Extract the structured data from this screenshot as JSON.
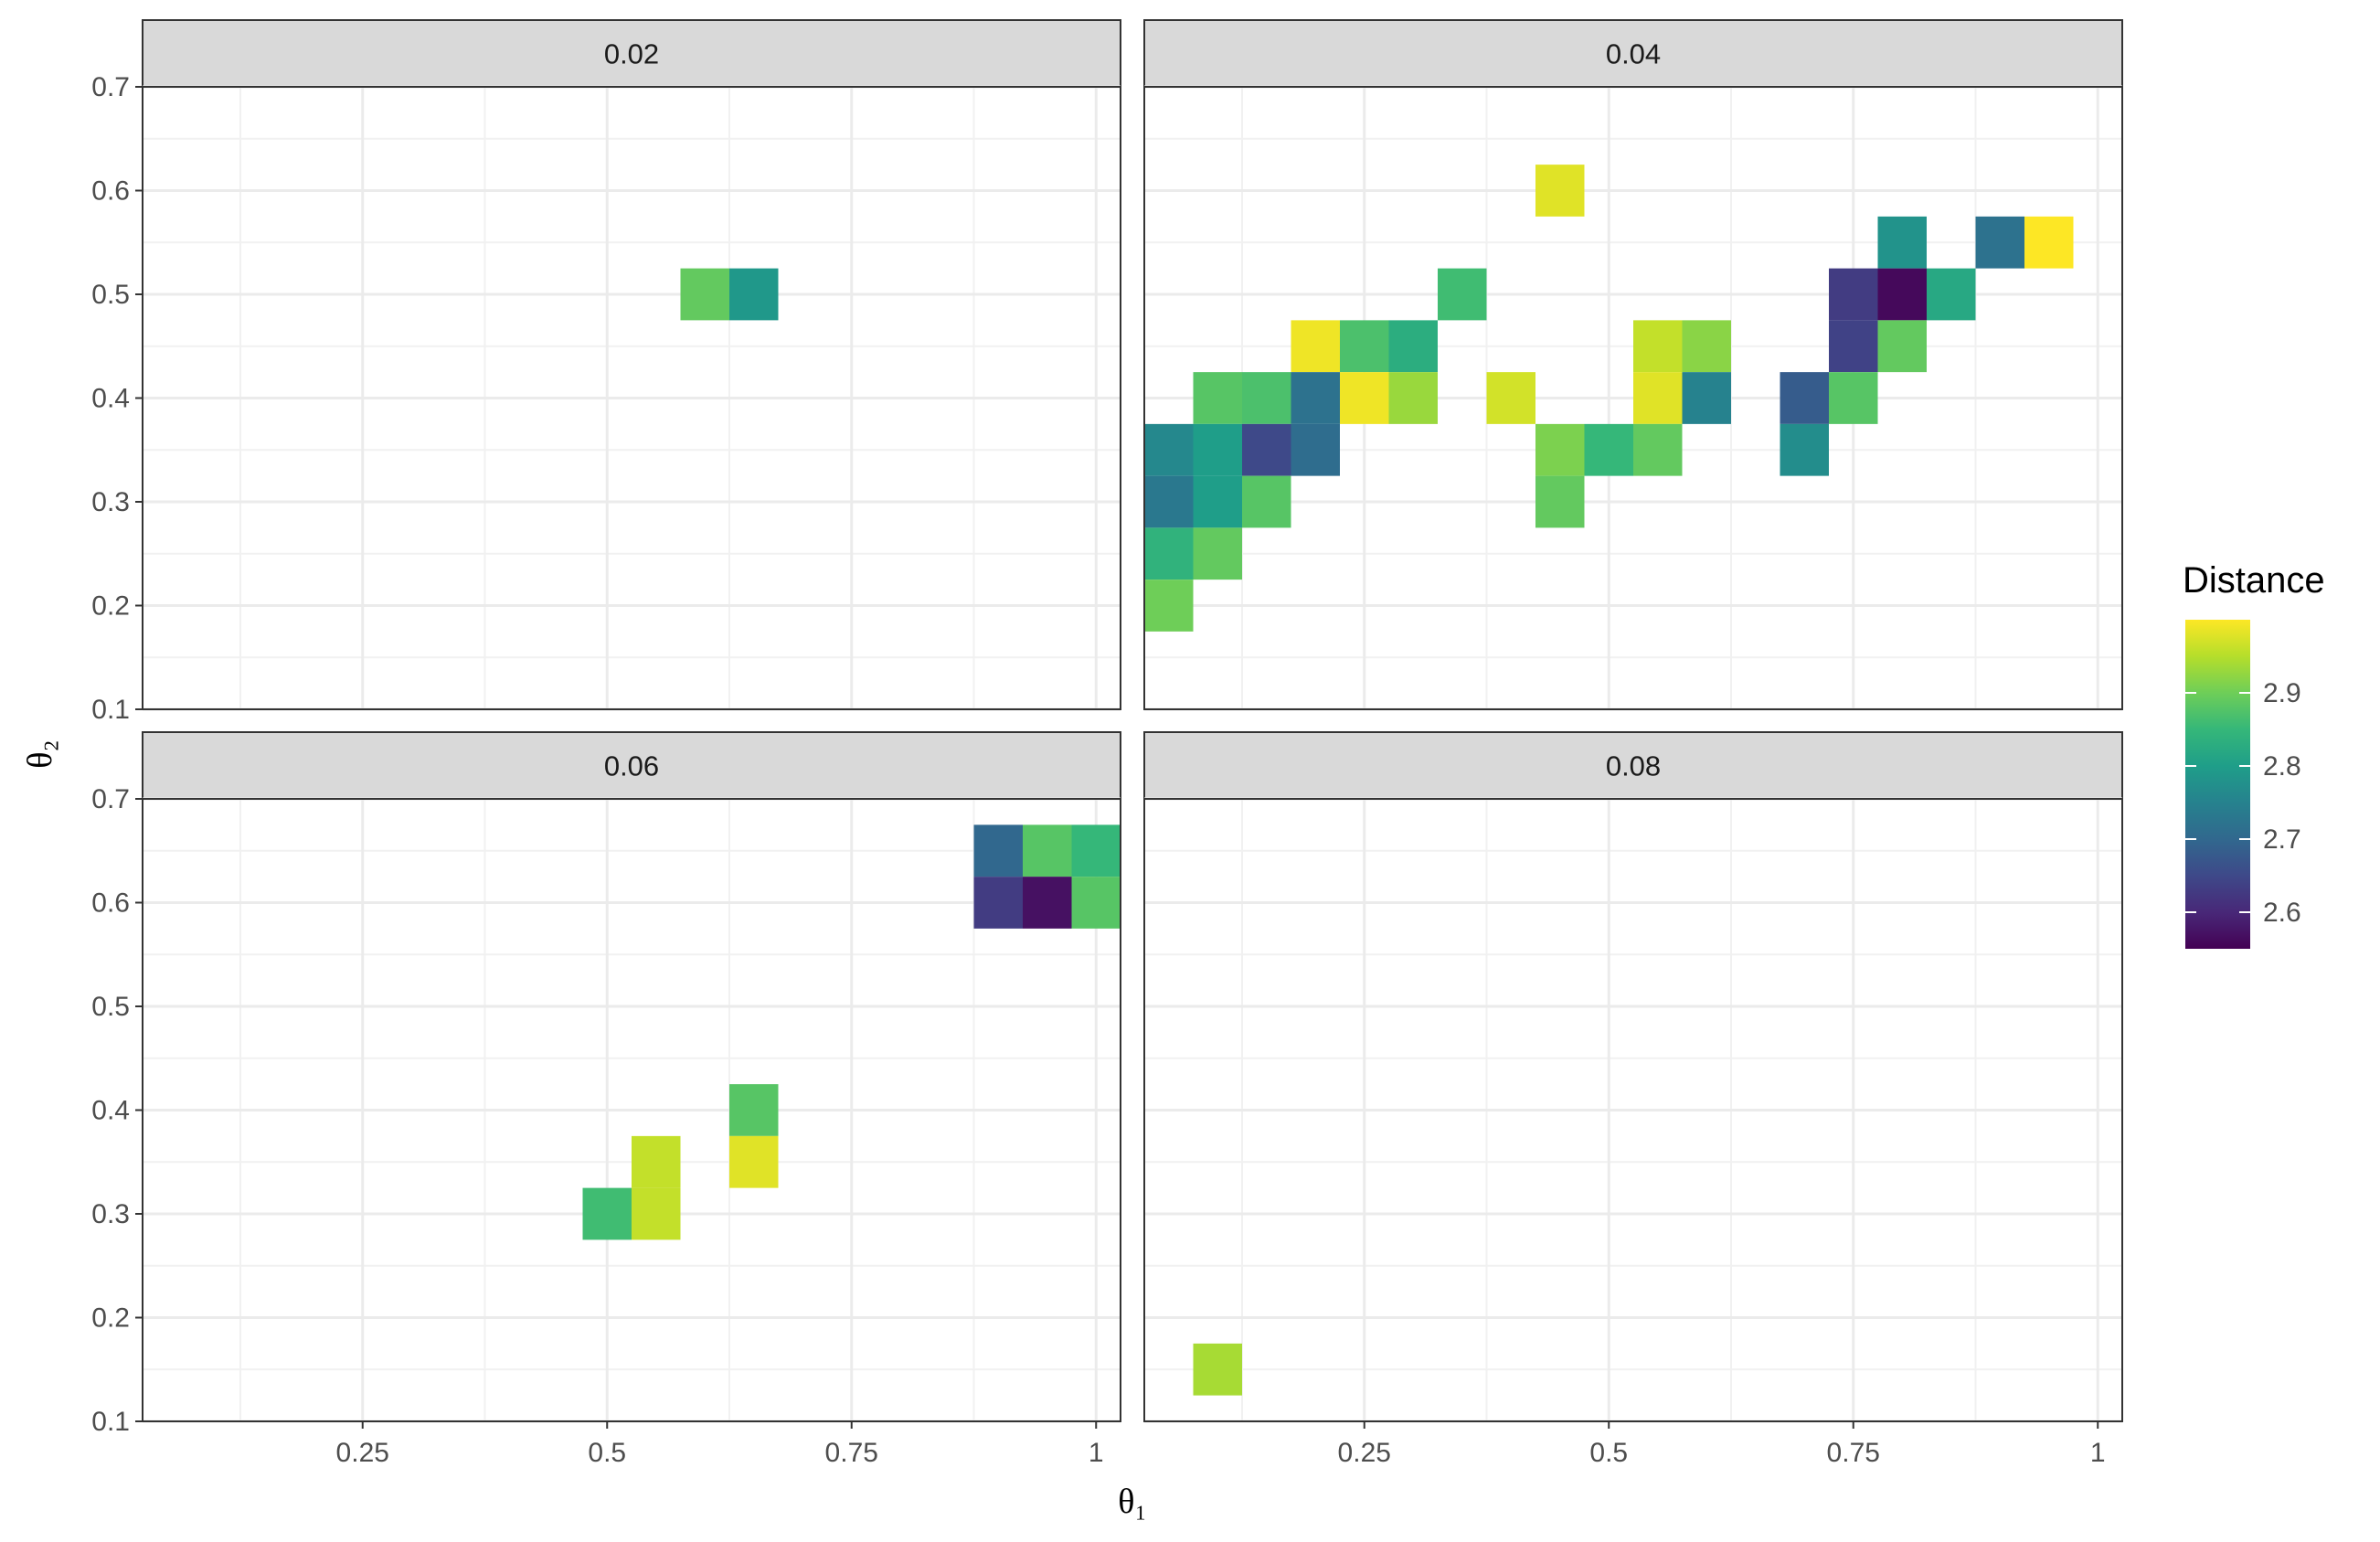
{
  "chart_data": {
    "type": "heatmap",
    "facets": [
      {
        "label": "0.02",
        "cells": [
          {
            "x": 0.6,
            "y": 0.5,
            "value": 2.89
          },
          {
            "x": 0.65,
            "y": 0.5,
            "value": 2.79
          }
        ]
      },
      {
        "label": "0.04",
        "cells": [
          {
            "x": 0.45,
            "y": 0.6,
            "value": 2.98
          },
          {
            "x": 0.8,
            "y": 0.55,
            "value": 2.78
          },
          {
            "x": 0.9,
            "y": 0.55,
            "value": 2.72
          },
          {
            "x": 0.95,
            "y": 0.55,
            "value": 3.0
          },
          {
            "x": 0.35,
            "y": 0.5,
            "value": 2.86
          },
          {
            "x": 0.75,
            "y": 0.5,
            "value": 2.63
          },
          {
            "x": 0.8,
            "y": 0.5,
            "value": 2.56
          },
          {
            "x": 0.85,
            "y": 0.5,
            "value": 2.82
          },
          {
            "x": 0.2,
            "y": 0.45,
            "value": 2.99
          },
          {
            "x": 0.25,
            "y": 0.45,
            "value": 2.87
          },
          {
            "x": 0.3,
            "y": 0.45,
            "value": 2.83
          },
          {
            "x": 0.55,
            "y": 0.45,
            "value": 2.96
          },
          {
            "x": 0.6,
            "y": 0.45,
            "value": 2.92
          },
          {
            "x": 0.75,
            "y": 0.45,
            "value": 2.64
          },
          {
            "x": 0.8,
            "y": 0.45,
            "value": 2.89
          },
          {
            "x": 0.1,
            "y": 0.4,
            "value": 2.88
          },
          {
            "x": 0.15,
            "y": 0.4,
            "value": 2.87
          },
          {
            "x": 0.2,
            "y": 0.4,
            "value": 2.72
          },
          {
            "x": 0.25,
            "y": 0.4,
            "value": 2.99
          },
          {
            "x": 0.3,
            "y": 0.4,
            "value": 2.93
          },
          {
            "x": 0.4,
            "y": 0.4,
            "value": 2.97
          },
          {
            "x": 0.55,
            "y": 0.4,
            "value": 2.98
          },
          {
            "x": 0.6,
            "y": 0.4,
            "value": 2.75
          },
          {
            "x": 0.7,
            "y": 0.4,
            "value": 2.68
          },
          {
            "x": 0.75,
            "y": 0.4,
            "value": 2.88
          },
          {
            "x": 0.05,
            "y": 0.35,
            "value": 2.76
          },
          {
            "x": 0.1,
            "y": 0.35,
            "value": 2.8
          },
          {
            "x": 0.15,
            "y": 0.35,
            "value": 2.65
          },
          {
            "x": 0.2,
            "y": 0.35,
            "value": 2.71
          },
          {
            "x": 0.45,
            "y": 0.35,
            "value": 2.91
          },
          {
            "x": 0.5,
            "y": 0.35,
            "value": 2.85
          },
          {
            "x": 0.55,
            "y": 0.35,
            "value": 2.89
          },
          {
            "x": 0.7,
            "y": 0.35,
            "value": 2.77
          },
          {
            "x": 0.05,
            "y": 0.3,
            "value": 2.73
          },
          {
            "x": 0.1,
            "y": 0.3,
            "value": 2.8
          },
          {
            "x": 0.15,
            "y": 0.3,
            "value": 2.88
          },
          {
            "x": 0.45,
            "y": 0.3,
            "value": 2.89
          },
          {
            "x": 0.05,
            "y": 0.25,
            "value": 2.84
          },
          {
            "x": 0.1,
            "y": 0.25,
            "value": 2.89
          },
          {
            "x": 0.05,
            "y": 0.2,
            "value": 2.9
          }
        ]
      },
      {
        "label": "0.06",
        "cells": [
          {
            "x": 0.9,
            "y": 0.65,
            "value": 2.7
          },
          {
            "x": 0.95,
            "y": 0.65,
            "value": 2.88
          },
          {
            "x": 1.0,
            "y": 0.65,
            "value": 2.85
          },
          {
            "x": 0.9,
            "y": 0.6,
            "value": 2.63
          },
          {
            "x": 0.95,
            "y": 0.6,
            "value": 2.57
          },
          {
            "x": 1.0,
            "y": 0.6,
            "value": 2.88
          },
          {
            "x": 0.65,
            "y": 0.4,
            "value": 2.88
          },
          {
            "x": 0.55,
            "y": 0.35,
            "value": 2.96
          },
          {
            "x": 0.65,
            "y": 0.35,
            "value": 2.98
          },
          {
            "x": 0.5,
            "y": 0.3,
            "value": 2.86
          },
          {
            "x": 0.55,
            "y": 0.3,
            "value": 2.96
          }
        ]
      },
      {
        "label": "0.08",
        "cells": [
          {
            "x": 0.1,
            "y": 0.15,
            "value": 2.94
          }
        ]
      }
    ],
    "x_ticks": [
      "0.25",
      "0.5",
      "0.75",
      "1"
    ],
    "x_tick_values": [
      0.25,
      0.5,
      0.75,
      1.0
    ],
    "y_ticks": [
      "0.1",
      "0.2",
      "0.3",
      "0.4",
      "0.5",
      "0.6",
      "0.7"
    ],
    "y_tick_values": [
      0.1,
      0.2,
      0.3,
      0.4,
      0.5,
      0.6,
      0.7
    ],
    "xlim": [
      0.025,
      1.025
    ],
    "ylim": [
      0.1,
      0.7
    ],
    "cell_width": 0.05,
    "cell_height": 0.05,
    "xlabel": "θ₁",
    "ylabel": "θ₂",
    "legend": {
      "title": "Distance",
      "ticks": [
        "2.6",
        "2.7",
        "2.8",
        "2.9"
      ],
      "tick_values": [
        2.6,
        2.7,
        2.8,
        2.9
      ],
      "range": [
        2.55,
        3.0
      ],
      "palette": "viridis",
      "placement": "right"
    },
    "grid": true
  }
}
